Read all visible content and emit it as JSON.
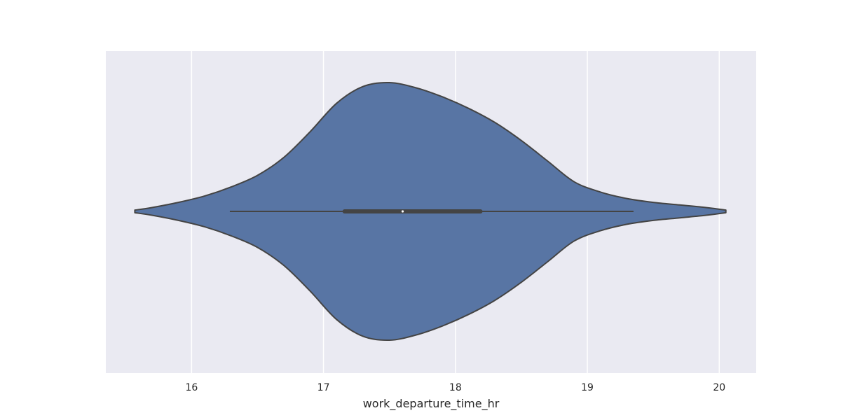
{
  "chart_data": {
    "type": "violin",
    "orientation": "horizontal",
    "xlabel": "work_departure_time_hr",
    "ylabel": "",
    "title": "",
    "xlim": [
      15.35,
      20.28
    ],
    "xticks": [
      {
        "value": 16,
        "label": "16"
      },
      {
        "value": 17,
        "label": "17"
      },
      {
        "value": 18,
        "label": "18"
      },
      {
        "value": 19,
        "label": "19"
      },
      {
        "value": 20,
        "label": "20"
      }
    ],
    "grid": true,
    "violin": {
      "range": [
        15.57,
        20.05
      ],
      "density_profile": [
        {
          "x": 15.57,
          "d": 0.01
        },
        {
          "x": 15.7,
          "d": 0.03
        },
        {
          "x": 15.9,
          "d": 0.07
        },
        {
          "x": 16.1,
          "d": 0.12
        },
        {
          "x": 16.3,
          "d": 0.19
        },
        {
          "x": 16.5,
          "d": 0.28
        },
        {
          "x": 16.7,
          "d": 0.42
        },
        {
          "x": 16.9,
          "d": 0.62
        },
        {
          "x": 17.1,
          "d": 0.84
        },
        {
          "x": 17.3,
          "d": 0.97
        },
        {
          "x": 17.5,
          "d": 1.0
        },
        {
          "x": 17.7,
          "d": 0.96
        },
        {
          "x": 17.9,
          "d": 0.89
        },
        {
          "x": 18.1,
          "d": 0.8
        },
        {
          "x": 18.3,
          "d": 0.69
        },
        {
          "x": 18.5,
          "d": 0.55
        },
        {
          "x": 18.7,
          "d": 0.39
        },
        {
          "x": 18.9,
          "d": 0.23
        },
        {
          "x": 19.1,
          "d": 0.15
        },
        {
          "x": 19.3,
          "d": 0.1
        },
        {
          "x": 19.5,
          "d": 0.07
        },
        {
          "x": 19.7,
          "d": 0.05
        },
        {
          "x": 19.9,
          "d": 0.03
        },
        {
          "x": 20.05,
          "d": 0.01
        }
      ]
    },
    "box": {
      "whisker_low": 16.29,
      "q1": 17.16,
      "median": 17.6,
      "q3": 18.19,
      "whisker_high": 19.35
    },
    "colors": {
      "fill": "#5875a4",
      "outline": "#444444",
      "background": "#eaeaf2",
      "grid": "#ffffff",
      "median": "#ffffff"
    }
  }
}
